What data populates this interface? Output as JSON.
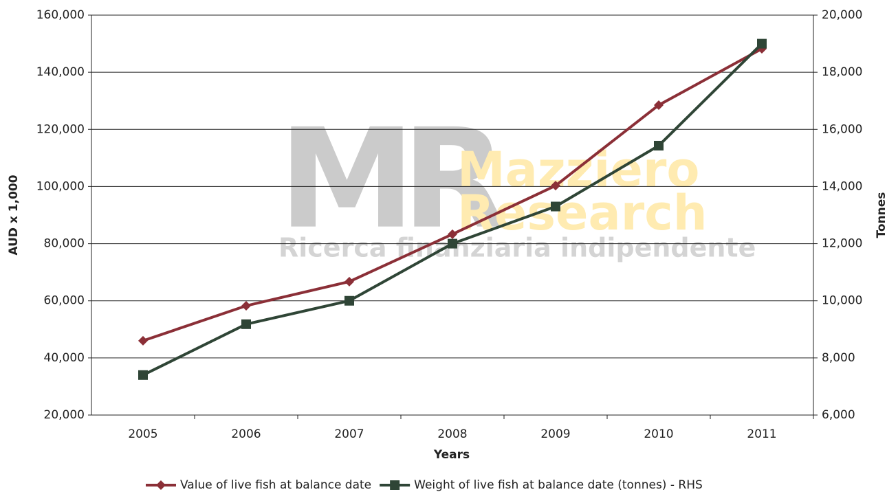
{
  "chart_data": {
    "type": "line",
    "x_label": "Years",
    "y_label": "AUD x 1,000",
    "y2_label": "Tonnes",
    "watermark": {
      "logo": "MR",
      "name": [
        "Mazziero",
        "Research"
      ],
      "tagline": "Ricerca finanziaria indipendente"
    },
    "categories": [
      "2005",
      "2006",
      "2007",
      "2008",
      "2009",
      "2010",
      "2011"
    ],
    "series": [
      {
        "name": "Value of live fish at balance date",
        "color": "#8b2f37",
        "marker": "diamond",
        "values": [
          46000,
          58250,
          66700,
          83300,
          100300,
          128500,
          148200
        ]
      },
      {
        "name": "Weight of live fish at balance date (tonnes) - RHS",
        "color": "#2f4536",
        "marker": "square",
        "axis": "y2",
        "values": [
          7400,
          9180,
          10000,
          12000,
          13300,
          15430,
          19000
        ]
      }
    ],
    "ylim": [
      20000,
      160000
    ],
    "yticks": [
      {
        "value": 20000,
        "label": "20,000"
      },
      {
        "value": 40000,
        "label": "40,000"
      },
      {
        "value": 60000,
        "label": "60,000"
      },
      {
        "value": 80000,
        "label": "80,000"
      },
      {
        "value": 100000,
        "label": "100,000"
      },
      {
        "value": 120000,
        "label": "120,000"
      },
      {
        "value": 140000,
        "label": "140,000"
      },
      {
        "value": 160000,
        "label": "160,000"
      }
    ],
    "y2lim": [
      6000,
      20000
    ],
    "y2ticks": [
      {
        "value": 6000,
        "label": "6,000"
      },
      {
        "value": 8000,
        "label": "8,000"
      },
      {
        "value": 10000,
        "label": "10,000"
      },
      {
        "value": 12000,
        "label": "12,000"
      },
      {
        "value": 14000,
        "label": "14,000"
      },
      {
        "value": 16000,
        "label": "16,000"
      },
      {
        "value": 18000,
        "label": "18,000"
      },
      {
        "value": 20000,
        "label": "20,000"
      }
    ],
    "grid": true,
    "legend": "bottom"
  }
}
